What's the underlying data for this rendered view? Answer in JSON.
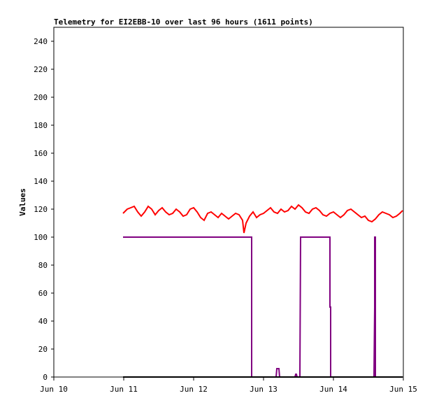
{
  "chart_data": {
    "type": "line",
    "title": "Telemetry for EI2EBB-10 over last 96 hours (1611 points)",
    "xlabel": "",
    "ylabel": "Values",
    "xlim": [
      0,
      5
    ],
    "x_unit": "days from Jun 10",
    "ylim": [
      0,
      250
    ],
    "x_ticks": [
      {
        "value": 0,
        "label": "Jun 10"
      },
      {
        "value": 1,
        "label": "Jun 11"
      },
      {
        "value": 2,
        "label": "Jun 12"
      },
      {
        "value": 3,
        "label": "Jun 13"
      },
      {
        "value": 4,
        "label": "Jun 14"
      },
      {
        "value": 5,
        "label": "Jun 15"
      }
    ],
    "y_ticks": [
      0,
      20,
      40,
      60,
      80,
      100,
      120,
      140,
      160,
      180,
      200,
      220,
      240
    ],
    "grid": false,
    "legend": "none",
    "series": [
      {
        "color": "#ff0000",
        "x": [
          0.99,
          1.05,
          1.1,
          1.15,
          1.2,
          1.25,
          1.3,
          1.35,
          1.4,
          1.45,
          1.5,
          1.55,
          1.6,
          1.65,
          1.7,
          1.75,
          1.8,
          1.85,
          1.9,
          1.95,
          2.0,
          2.05,
          2.1,
          2.15,
          2.2,
          2.25,
          2.3,
          2.35,
          2.4,
          2.45,
          2.5,
          2.55,
          2.6,
          2.65,
          2.7,
          2.72,
          2.75,
          2.8,
          2.85,
          2.9,
          2.95,
          3.0,
          3.05,
          3.1,
          3.15,
          3.2,
          3.25,
          3.3,
          3.35,
          3.4,
          3.45,
          3.5,
          3.55,
          3.6,
          3.65,
          3.7,
          3.75,
          3.8,
          3.85,
          3.9,
          3.95,
          4.0,
          4.05,
          4.1,
          4.15,
          4.2,
          4.25,
          4.3,
          4.35,
          4.4,
          4.45,
          4.5,
          4.55,
          4.6,
          4.65,
          4.7,
          4.75,
          4.8,
          4.85,
          4.9,
          4.95,
          4.99
        ],
        "y": [
          117,
          120,
          121,
          122,
          118,
          115,
          118,
          122,
          120,
          116,
          119,
          121,
          118,
          116,
          117,
          120,
          118,
          115,
          116,
          120,
          121,
          118,
          114,
          112,
          117,
          118,
          116,
          114,
          117,
          115,
          113,
          115,
          117,
          116,
          112,
          103,
          110,
          115,
          118,
          114,
          116,
          117,
          119,
          121,
          118,
          117,
          120,
          118,
          119,
          122,
          120,
          123,
          121,
          118,
          117,
          120,
          121,
          119,
          116,
          115,
          117,
          118,
          116,
          114,
          116,
          119,
          120,
          118,
          116,
          114,
          115,
          112,
          111,
          113,
          116,
          118,
          117,
          116,
          114,
          115,
          117,
          119
        ]
      },
      {
        "color": "#800080",
        "x": [
          0.99,
          2.83,
          2.83,
          2.84,
          3.18,
          3.19,
          3.2,
          3.22,
          3.23,
          3.45,
          3.46,
          3.47,
          3.48,
          3.52,
          3.53,
          3.95,
          3.95,
          3.96,
          3.96,
          4.58,
          4.59,
          4.59,
          4.6,
          4.6,
          4.62,
          4.99
        ],
        "y": [
          100,
          100,
          0,
          0,
          0,
          6,
          6,
          6,
          0,
          0,
          2,
          2,
          0,
          0,
          100,
          100,
          50,
          50,
          0,
          0,
          50,
          100,
          100,
          0,
          0,
          0
        ]
      },
      {
        "color": "#000000",
        "x": [
          0.99,
          4.99
        ],
        "y": [
          0,
          0
        ]
      }
    ]
  }
}
